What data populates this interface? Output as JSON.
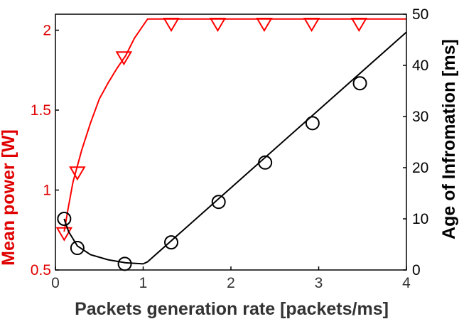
{
  "chart_data": {
    "type": "line",
    "xlabel": "Packets generation rate [packets/ms]",
    "ylabel_left": "Mean power [W]",
    "ylabel_right": "Age of Infromation [ms]",
    "xlim": [
      0,
      4
    ],
    "ylim_left": [
      0.5,
      2.1
    ],
    "ylim_right": [
      0,
      50
    ],
    "xticks": [
      "0",
      "1",
      "2",
      "3",
      "4"
    ],
    "yticks_left": [
      "0.5",
      "1",
      "1.5",
      "2"
    ],
    "yticks_right": [
      "0",
      "10",
      "20",
      "30",
      "40",
      "50"
    ],
    "grid": false,
    "colors": {
      "left_axis": "#e00000",
      "right_axis": "#000000"
    },
    "series": [
      {
        "axis": "left",
        "color": "#ff0000",
        "marker": "triangle-down",
        "line": [
          [
            0.1,
            0.74
          ],
          [
            0.15,
            0.9
          ],
          [
            0.2,
            1.05
          ],
          [
            0.3,
            1.25
          ],
          [
            0.4,
            1.42
          ],
          [
            0.5,
            1.57
          ],
          [
            0.6,
            1.67
          ],
          [
            0.7,
            1.76
          ],
          [
            0.8,
            1.84
          ],
          [
            0.9,
            1.95
          ],
          [
            1.0,
            2.03
          ],
          [
            1.05,
            2.07
          ],
          [
            4.0,
            2.07
          ]
        ],
        "markers": [
          [
            0.1,
            0.73
          ],
          [
            0.25,
            1.11
          ],
          [
            0.78,
            1.83
          ],
          [
            1.32,
            2.04
          ],
          [
            1.85,
            2.04
          ],
          [
            2.38,
            2.04
          ],
          [
            2.92,
            2.04
          ],
          [
            3.46,
            2.04
          ]
        ]
      },
      {
        "axis": "right",
        "color": "#000000",
        "marker": "circle",
        "line": [
          [
            0.1,
            10
          ],
          [
            0.15,
            7.5
          ],
          [
            0.25,
            4.7
          ],
          [
            0.4,
            3
          ],
          [
            0.6,
            2
          ],
          [
            0.8,
            1.4
          ],
          [
            1.0,
            1.2
          ],
          [
            1.05,
            1.6
          ],
          [
            4.0,
            46.5
          ]
        ],
        "markers": [
          [
            0.1,
            10
          ],
          [
            0.25,
            4.3
          ],
          [
            0.79,
            1.2
          ],
          [
            1.32,
            5.4
          ],
          [
            1.86,
            13.3
          ],
          [
            2.39,
            21
          ],
          [
            2.93,
            28.7
          ],
          [
            3.47,
            36.5
          ]
        ]
      }
    ]
  }
}
